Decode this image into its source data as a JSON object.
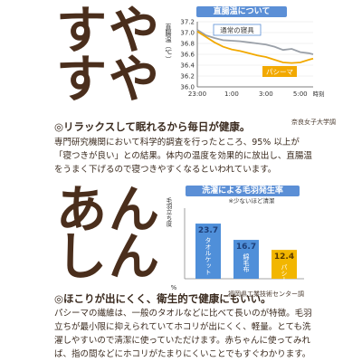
{
  "section1": {
    "big_text": [
      "すや",
      "すや"
    ],
    "heading": "◎リラックスして眠れるから毎日が健康。",
    "paragraph": "専門研究機関において科学的調査を行ったところ、95% 以上が「寝つきが良い」との結果。体内の温度を効果的に放出し、直腸温をうまく下げるので寝つきやすくなるといわれています。"
  },
  "section2": {
    "big_text": [
      "あん",
      "しん"
    ],
    "heading": "◎ほこりが出にくく、衛生的で健康にもいい。",
    "paragraph": "パシーマの繊維は、一般のタオルなどに比べて長いのが特徴。毛羽立ちが最小限に抑えられていてホコリが出にくく、軽量。とても洗濯しやすいので清潔に使っていただけます。赤ちゃんに使ってみれば、指の間などにホコリがたまりにくいことでもすぐわかります。"
  },
  "chart_data": [
    {
      "type": "line",
      "title": "直腸温について",
      "ylabel": "直腸温（℃）",
      "xlabel": "時刻",
      "x": [
        "23:00",
        "1:00",
        "3:00",
        "5:00"
      ],
      "ylim": [
        36.0,
        37.2
      ],
      "yticks": [
        "37.2",
        "37.0",
        "36.8",
        "36.6",
        "36.4",
        "36.2",
        "36.0"
      ],
      "series": [
        {
          "name": "通常の寝具",
          "color": "#9aa0a8",
          "points": [
            [
              23,
              37.05
            ],
            [
              23.5,
              36.95
            ],
            [
              0,
              36.9
            ],
            [
              0.5,
              36.86
            ],
            [
              1,
              36.85
            ],
            [
              1.5,
              36.84
            ],
            [
              2,
              36.82
            ],
            [
              2.5,
              36.8
            ],
            [
              3,
              36.78
            ],
            [
              3.5,
              36.74
            ],
            [
              4,
              36.68
            ],
            [
              4.5,
              36.7
            ],
            [
              5,
              36.64
            ],
            [
              5.5,
              36.62
            ],
            [
              5.75,
              36.6
            ]
          ]
        },
        {
          "name": "パシーマ",
          "color": "#f2a900",
          "points": [
            [
              23,
              37.02
            ],
            [
              23.5,
              36.92
            ],
            [
              0,
              36.82
            ],
            [
              0.5,
              36.74
            ],
            [
              1,
              36.69
            ],
            [
              1.5,
              36.66
            ],
            [
              2,
              36.62
            ],
            [
              2.5,
              36.58
            ],
            [
              3,
              36.55
            ],
            [
              3.5,
              36.5
            ],
            [
              4,
              36.45
            ],
            [
              4.5,
              36.44
            ],
            [
              5,
              36.45
            ],
            [
              5.5,
              36.5
            ],
            [
              5.75,
              36.52
            ]
          ]
        }
      ],
      "source": "奈良女子大学調"
    },
    {
      "type": "bar",
      "title": "洗濯による毛羽発生率",
      "subtitle": "※少ないほど清潔",
      "ylabel": "毛羽立ち度",
      "unit_label": "%",
      "categories": [
        "タオルケット",
        "綿毛布",
        "パシーマ"
      ],
      "values": [
        23.7,
        16.7,
        12.4
      ],
      "colors": [
        "#4f8fd9",
        "#4f8fd9",
        "#f2b600"
      ],
      "ylim": [
        0,
        28
      ],
      "source": "福岡県工業技術センター調"
    }
  ],
  "colors": {
    "accent_blue": "#5b8fd6",
    "accent_orange": "#f2a900",
    "text_brown": "#4a2e1c"
  }
}
